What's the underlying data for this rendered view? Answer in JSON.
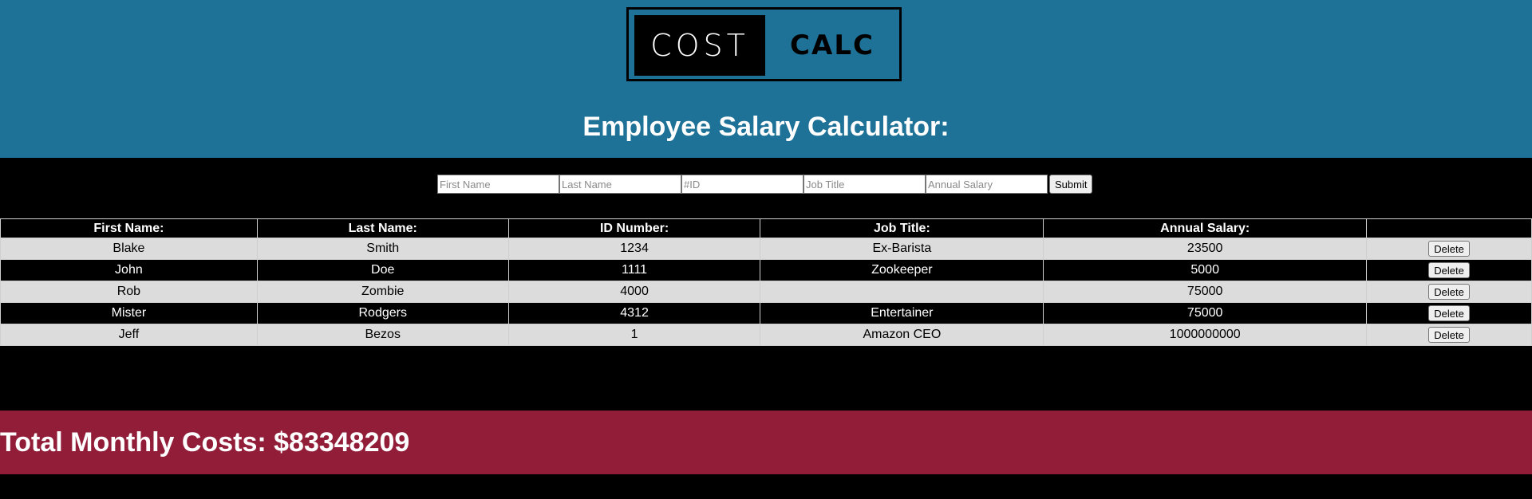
{
  "header": {
    "logo": {
      "left": "COST",
      "right": "CALC"
    },
    "title": "Employee Salary Calculator:"
  },
  "form": {
    "first_name_placeholder": "First Name",
    "last_name_placeholder": "Last Name",
    "id_placeholder": "#ID",
    "job_title_placeholder": "Job Title",
    "salary_placeholder": "Annual Salary",
    "submit_label": "Submit"
  },
  "table": {
    "headers": [
      "First Name:",
      "Last Name:",
      "ID Number:",
      "Job Title:",
      "Annual Salary:",
      ""
    ],
    "delete_label": "Delete",
    "rows": [
      {
        "first": "Blake",
        "last": "Smith",
        "id": "1234",
        "title": "Ex-Barista",
        "salary": "23500"
      },
      {
        "first": "John",
        "last": "Doe",
        "id": "1111",
        "title": "Zookeeper",
        "salary": "5000"
      },
      {
        "first": "Rob",
        "last": "Zombie",
        "id": "4000",
        "title": "",
        "salary": "75000"
      },
      {
        "first": "Mister",
        "last": "Rodgers",
        "id": "4312",
        "title": "Entertainer",
        "salary": "75000"
      },
      {
        "first": "Jeff",
        "last": "Bezos",
        "id": "1",
        "title": "Amazon CEO",
        "salary": "1000000000"
      }
    ]
  },
  "footer": {
    "total_text": "Total Monthly Costs: $83348209"
  },
  "colors": {
    "header_bg": "#1e7197",
    "footer_bg": "#921d38",
    "row_light": "#dcdcdc",
    "row_dark": "#000000"
  }
}
